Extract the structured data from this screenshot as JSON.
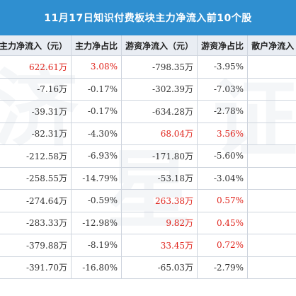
{
  "title": "11月17日知识付费板块主力净流入前10个股",
  "headers": [
    "主力净流入（元）",
    "主力净占比",
    "游资净流入（元）",
    "游资净占比",
    "散户净流入（元）"
  ],
  "rows": [
    {
      "main_inflow": "622.61万",
      "main_ratio": "3.08%",
      "hot_inflow": "-798.35万",
      "hot_ratio": "-3.95%"
    },
    {
      "main_inflow": "-7.16万",
      "main_ratio": "-0.17%",
      "hot_inflow": "-302.39万",
      "hot_ratio": "-7.03%"
    },
    {
      "main_inflow": "-39.31万",
      "main_ratio": "-0.17%",
      "hot_inflow": "-634.28万",
      "hot_ratio": "-2.78%"
    },
    {
      "main_inflow": "-82.31万",
      "main_ratio": "-4.30%",
      "hot_inflow": "68.04万",
      "hot_ratio": "3.56%"
    },
    {
      "main_inflow": "-212.58万",
      "main_ratio": "-6.93%",
      "hot_inflow": "-171.80万",
      "hot_ratio": "-5.60%"
    },
    {
      "main_inflow": "-258.55万",
      "main_ratio": "-14.79%",
      "hot_inflow": "-53.18万",
      "hot_ratio": "-3.04%"
    },
    {
      "main_inflow": "-274.64万",
      "main_ratio": "-0.59%",
      "hot_inflow": "263.38万",
      "hot_ratio": "0.57%"
    },
    {
      "main_inflow": "-283.33万",
      "main_ratio": "-12.98%",
      "hot_inflow": "9.82万",
      "hot_ratio": "0.45%"
    },
    {
      "main_inflow": "-379.88万",
      "main_ratio": "-8.19%",
      "hot_inflow": "33.45万",
      "hot_ratio": "0.72%"
    },
    {
      "main_inflow": "-391.70万",
      "main_ratio": "-16.80%",
      "hot_inflow": "-65.03万",
      "hot_ratio": "-2.79%"
    }
  ],
  "colors": {
    "header_bg": "#2f8fd0",
    "positive": "#e0241c",
    "negative": "#333333"
  }
}
